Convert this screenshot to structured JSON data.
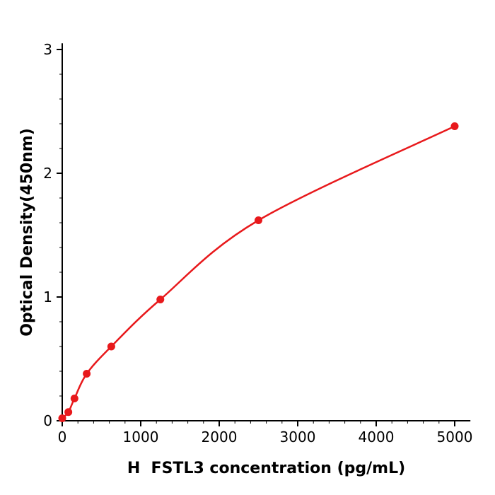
{
  "chart_data": {
    "type": "scatter",
    "title": "",
    "xlabel": "H  FSTL3 concentration (pg/mL)",
    "ylabel": "Optical Density(450nm)",
    "x": [
      0,
      78,
      156,
      312,
      625,
      1250,
      2500,
      5000
    ],
    "y": [
      0.02,
      0.07,
      0.18,
      0.38,
      0.6,
      0.98,
      1.62,
      2.38
    ],
    "xlim": [
      0,
      5200
    ],
    "ylim": [
      0,
      3.05
    ],
    "x_ticks": [
      0,
      1000,
      2000,
      3000,
      4000,
      5000
    ],
    "y_ticks": [
      0,
      1,
      2,
      3
    ],
    "x_minor_step": 200,
    "y_minor_step": 0.2,
    "grid": false,
    "legend": null,
    "fit": "four-parameter-logistic-curve",
    "line_color": "#e8191c",
    "marker_color": "#e8191c",
    "marker": "circle",
    "axis_color": "#000000",
    "background_color": "#ffffff"
  }
}
